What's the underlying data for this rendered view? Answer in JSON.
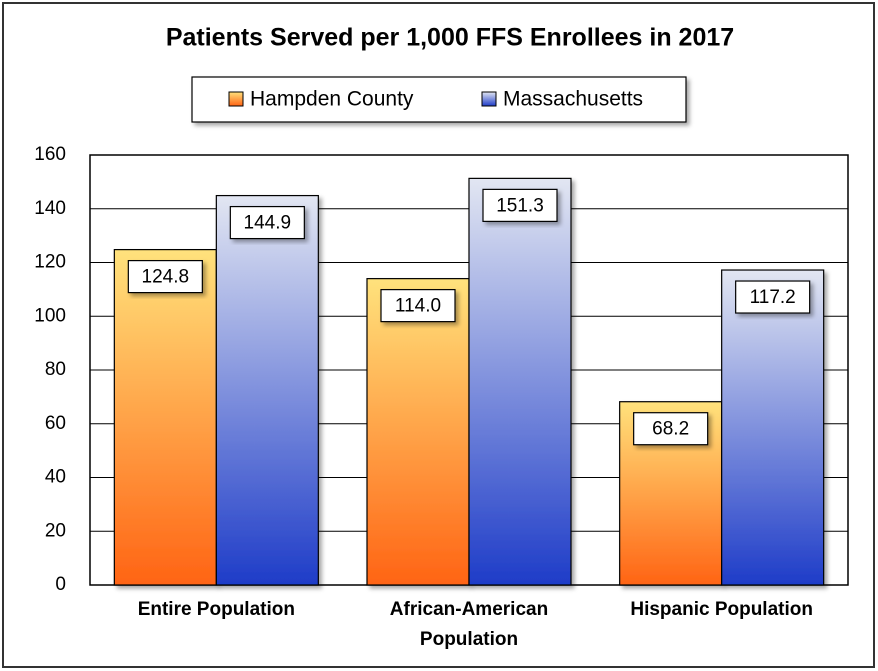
{
  "chart_data": {
    "type": "bar",
    "title": "Patients Served per 1,000 FFS Enrollees in 2017",
    "categories": [
      "Entire Population",
      "African-American Population",
      "Hispanic Population"
    ],
    "series": [
      {
        "name": "Hampden County",
        "color": "#ff7a22",
        "values": [
          124.8,
          114.0,
          68.2
        ],
        "value_labels": [
          "124.8",
          "114.0",
          "68.2"
        ]
      },
      {
        "name": "Massachusetts",
        "color": "#3a55d0",
        "values": [
          144.9,
          151.3,
          117.2
        ],
        "value_labels": [
          "144.9",
          "151.3",
          "117.2"
        ]
      }
    ],
    "ylim": [
      0,
      160
    ],
    "yticks": [
      0,
      20,
      40,
      60,
      80,
      100,
      120,
      140,
      160
    ],
    "grid": true,
    "legend": "top"
  }
}
